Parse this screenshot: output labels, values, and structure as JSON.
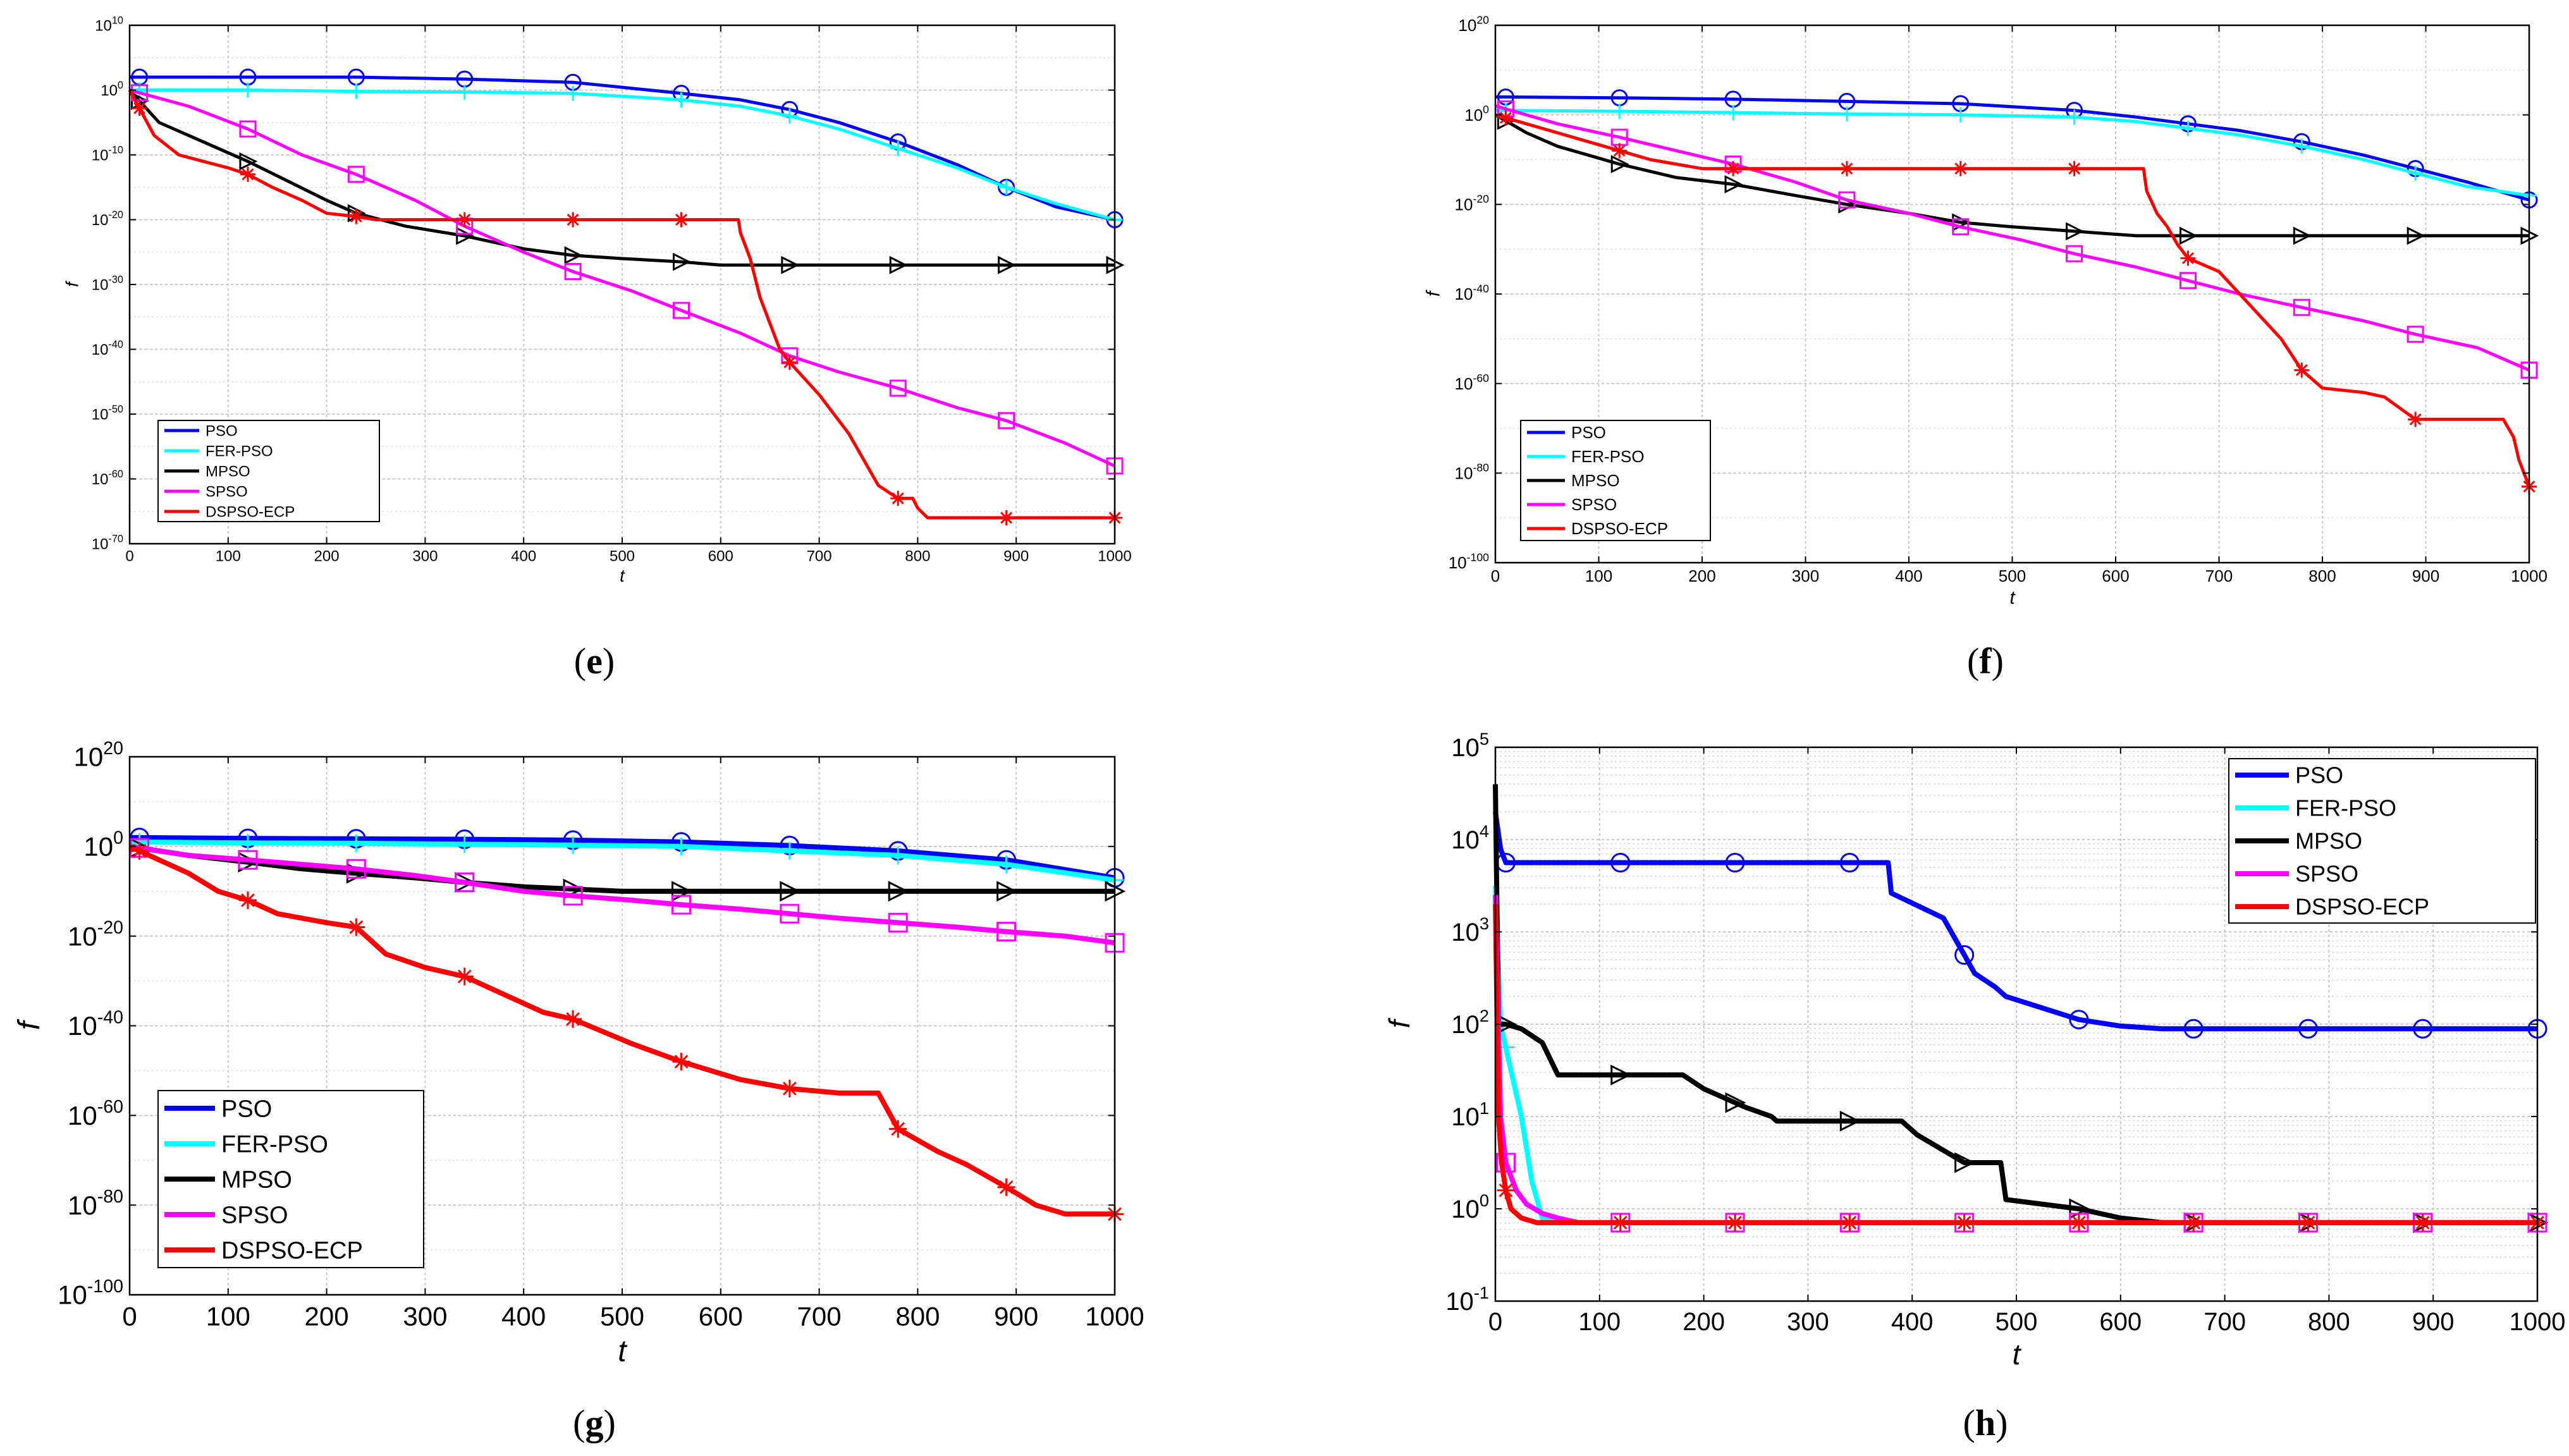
{
  "chart_data": [
    {
      "panel": "(e)",
      "type": "line",
      "scale_y": "log",
      "xlabel": "t",
      "ylabel": "f",
      "xlim": [
        0,
        1000
      ],
      "xticks": [
        "0",
        "100",
        "200",
        "300",
        "400",
        "500",
        "600",
        "700",
        "800",
        "900",
        "1000"
      ],
      "ylim_exp": [
        -70,
        10
      ],
      "ytick_exps": [
        -70,
        -60,
        -50,
        -40,
        -30,
        -20,
        -10,
        0,
        10
      ],
      "grid": true,
      "legend_placement": "bottom-left",
      "series": [
        {
          "name": "PSO",
          "color": "#0000ff",
          "marker": "circle",
          "x": [
            0,
            120,
            230,
            340,
            450,
            560,
            620,
            670,
            720,
            780,
            840,
            890,
            940,
            1000
          ],
          "y_exp": [
            2,
            2,
            2,
            1.7,
            1.2,
            -0.5,
            -1.5,
            -3,
            -5,
            -8,
            -11.5,
            -15,
            -18,
            -20
          ]
        },
        {
          "name": "FER-PSO",
          "color": "#00ffff",
          "marker": "plus",
          "x": [
            0,
            120,
            230,
            340,
            450,
            560,
            620,
            670,
            720,
            780,
            840,
            890,
            940,
            1000
          ],
          "y_exp": [
            0,
            0,
            -0.2,
            -0.3,
            -0.5,
            -1.5,
            -2.5,
            -4,
            -6,
            -9,
            -12,
            -15,
            -17.5,
            -20
          ]
        },
        {
          "name": "MPSO",
          "color": "#000000",
          "marker": "triangle-right",
          "x": [
            0,
            30,
            60,
            90,
            120,
            160,
            200,
            230,
            280,
            340,
            400,
            450,
            500,
            560,
            600,
            640,
            670,
            780,
            890,
            1000
          ],
          "y_exp": [
            0,
            -5,
            -7,
            -9,
            -11,
            -14,
            -17,
            -19,
            -21,
            -22.5,
            -24.5,
            -25.5,
            -26,
            -26.5,
            -27,
            -27,
            -27,
            -27,
            -27,
            -27
          ]
        },
        {
          "name": "SPSO",
          "color": "#ff00ff",
          "marker": "square",
          "x": [
            0,
            60,
            120,
            175,
            230,
            290,
            340,
            400,
            450,
            510,
            560,
            620,
            670,
            720,
            780,
            840,
            890,
            950,
            1000
          ],
          "y_exp": [
            0,
            -2.5,
            -6,
            -10,
            -13,
            -17,
            -21,
            -25,
            -28,
            -31,
            -34,
            -37.5,
            -41,
            -43.5,
            -46,
            -49,
            -51,
            -54.5,
            -58
          ]
        },
        {
          "name": "DSPSO-ECP",
          "color": "#ff0000",
          "marker": "asterisk",
          "x": [
            0,
            25,
            50,
            75,
            100,
            120,
            145,
            175,
            200,
            230,
            250,
            340,
            450,
            560,
            618,
            620,
            630,
            640,
            650,
            660,
            670,
            700,
            730,
            760,
            780,
            795,
            800,
            810,
            890,
            1000
          ],
          "y_exp": [
            0,
            -7,
            -10,
            -11,
            -12,
            -13,
            -15,
            -17,
            -19,
            -19.5,
            -20,
            -20,
            -20,
            -20,
            -20,
            -22,
            -26,
            -32,
            -36,
            -40,
            -42,
            -47,
            -53,
            -61,
            -63,
            -63,
            -64.5,
            -66,
            -66,
            -66
          ]
        }
      ]
    },
    {
      "panel": "(f)",
      "type": "line",
      "scale_y": "log",
      "xlabel": "t",
      "ylabel": "f",
      "xlim": [
        0,
        1000
      ],
      "xticks": [
        "0",
        "100",
        "200",
        "300",
        "400",
        "500",
        "600",
        "700",
        "800",
        "900",
        "1000"
      ],
      "ylim_exp": [
        -100,
        20
      ],
      "ytick_exps": [
        -100,
        -80,
        -60,
        -40,
        -20,
        0,
        20
      ],
      "grid": true,
      "legend_placement": "bottom-left",
      "series": [
        {
          "name": "PSO",
          "color": "#0000ff",
          "marker": "circle",
          "x": [
            0,
            120,
            230,
            340,
            450,
            560,
            620,
            670,
            720,
            780,
            840,
            890,
            940,
            1000
          ],
          "y_exp": [
            4,
            3.8,
            3.5,
            3,
            2.5,
            1,
            -0.5,
            -2,
            -3.5,
            -6,
            -9,
            -12,
            -15,
            -19
          ]
        },
        {
          "name": "FER-PSO",
          "color": "#00ffff",
          "marker": "plus",
          "x": [
            0,
            120,
            230,
            340,
            450,
            560,
            620,
            670,
            720,
            780,
            840,
            890,
            940,
            1000
          ],
          "y_exp": [
            1,
            0.8,
            0.5,
            0.2,
            0,
            -0.5,
            -1.5,
            -3,
            -4.5,
            -7,
            -10,
            -13,
            -16,
            -18
          ]
        },
        {
          "name": "MPSO",
          "color": "#000000",
          "marker": "triangle-right",
          "x": [
            0,
            30,
            60,
            120,
            175,
            230,
            290,
            340,
            400,
            450,
            500,
            560,
            620,
            670,
            780,
            890,
            1000
          ],
          "y_exp": [
            0,
            -4,
            -7,
            -11,
            -14,
            -15.5,
            -18,
            -20,
            -22,
            -24,
            -25,
            -26,
            -27,
            -27,
            -27,
            -27,
            -27
          ]
        },
        {
          "name": "SPSO",
          "color": "#ff00ff",
          "marker": "square",
          "x": [
            0,
            60,
            120,
            175,
            230,
            290,
            340,
            400,
            450,
            510,
            560,
            620,
            670,
            720,
            780,
            840,
            890,
            950,
            1000
          ],
          "y_exp": [
            2,
            -2,
            -5,
            -8,
            -11,
            -15,
            -19,
            -22,
            -25,
            -28,
            -31,
            -34,
            -37,
            -40,
            -43,
            -46,
            -49,
            -52,
            -57
          ]
        },
        {
          "name": "DSPSO-ECP",
          "color": "#ff0000",
          "marker": "asterisk",
          "x": [
            0,
            30,
            60,
            90,
            120,
            150,
            200,
            230,
            340,
            450,
            560,
            627,
            630,
            640,
            650,
            660,
            670,
            700,
            720,
            760,
            780,
            800,
            840,
            860,
            890,
            950,
            975,
            985,
            990,
            1000
          ],
          "y_exp": [
            0,
            -2,
            -4,
            -6,
            -8,
            -10,
            -12,
            -12,
            -12,
            -12,
            -12,
            -12,
            -17,
            -22,
            -25,
            -29,
            -32,
            -35,
            -40,
            -50,
            -57,
            -61,
            -62,
            -63,
            -68,
            -68,
            -68,
            -72,
            -77,
            -83
          ]
        }
      ]
    },
    {
      "panel": "(g)",
      "type": "line",
      "scale_y": "log",
      "xlabel": "t",
      "ylabel": "f",
      "xlim": [
        0,
        1000
      ],
      "xticks": [
        "0",
        "100",
        "200",
        "300",
        "400",
        "500",
        "600",
        "700",
        "800",
        "900",
        "1000"
      ],
      "ylim_exp": [
        -100,
        20
      ],
      "ytick_exps": [
        -100,
        -80,
        -60,
        -40,
        -20,
        0,
        20
      ],
      "grid": true,
      "legend_placement": "bottom-left",
      "series": [
        {
          "name": "PSO",
          "color": "#0000ff",
          "marker": "circle",
          "x": [
            0,
            120,
            230,
            340,
            450,
            560,
            670,
            780,
            890,
            1000
          ],
          "y_exp": [
            2,
            1.8,
            1.7,
            1.6,
            1.4,
            1,
            0.2,
            -1,
            -3,
            -7
          ]
        },
        {
          "name": "FER-PSO",
          "color": "#00ffff",
          "marker": "plus",
          "x": [
            0,
            120,
            230,
            340,
            450,
            560,
            670,
            780,
            890,
            1000
          ],
          "y_exp": [
            1,
            0.8,
            0.7,
            0.5,
            0.3,
            0,
            -1,
            -2,
            -4,
            -7.5
          ]
        },
        {
          "name": "MPSO",
          "color": "#000000",
          "marker": "triangle-right",
          "x": [
            0,
            60,
            120,
            175,
            230,
            290,
            340,
            400,
            450,
            500,
            560,
            620,
            670,
            780,
            890,
            1000
          ],
          "y_exp": [
            0,
            -2,
            -3.5,
            -5,
            -6,
            -7,
            -8,
            -9,
            -9.5,
            -10,
            -10,
            -10,
            -10,
            -10,
            -10,
            -10
          ]
        },
        {
          "name": "SPSO",
          "color": "#ff00ff",
          "marker": "square",
          "x": [
            0,
            60,
            120,
            175,
            230,
            290,
            340,
            400,
            450,
            510,
            560,
            620,
            670,
            720,
            780,
            840,
            890,
            950,
            1000
          ],
          "y_exp": [
            0,
            -2,
            -3,
            -4,
            -5,
            -6.5,
            -8,
            -10,
            -11,
            -12,
            -13,
            -14,
            -15,
            -16,
            -17,
            -18,
            -19,
            -20,
            -21.5
          ]
        },
        {
          "name": "DSPSO-ECP",
          "color": "#ff0000",
          "marker": "asterisk",
          "x": [
            0,
            30,
            60,
            90,
            120,
            150,
            175,
            200,
            230,
            260,
            300,
            340,
            380,
            420,
            450,
            510,
            560,
            620,
            670,
            720,
            760,
            780,
            820,
            850,
            890,
            920,
            950,
            1000
          ],
          "y_exp": [
            0,
            -3,
            -6,
            -10,
            -12,
            -15,
            -16,
            -17,
            -18,
            -24,
            -27,
            -29,
            -33,
            -37,
            -38.5,
            -44,
            -48,
            -52,
            -54,
            -55,
            -55,
            -63,
            -68,
            -71,
            -76,
            -80,
            -82,
            -82
          ]
        }
      ]
    },
    {
      "panel": "(h)",
      "type": "line",
      "scale_y": "log",
      "xlabel": "t",
      "ylabel": "f",
      "xlim": [
        0,
        1000
      ],
      "xticks": [
        "0",
        "100",
        "200",
        "300",
        "400",
        "500",
        "600",
        "700",
        "800",
        "900",
        "1000"
      ],
      "ylim_exp": [
        -1,
        5
      ],
      "ytick_exps": [
        -1,
        0,
        1,
        2,
        3,
        4,
        5
      ],
      "grid": true,
      "grid_minor": true,
      "legend_placement": "top-right",
      "series": [
        {
          "name": "PSO",
          "color": "#0000ff",
          "marker": "circle",
          "x": [
            0,
            5,
            10,
            120,
            230,
            340,
            377,
            380,
            430,
            445,
            460,
            480,
            490,
            560,
            600,
            640,
            670,
            780,
            890,
            1000
          ],
          "y_exp": [
            4.3,
            3.9,
            3.75,
            3.75,
            3.75,
            3.75,
            3.75,
            3.42,
            3.15,
            2.85,
            2.55,
            2.4,
            2.3,
            2.05,
            1.98,
            1.95,
            1.95,
            1.95,
            1.95,
            1.95
          ]
        },
        {
          "name": "FER-PSO",
          "color": "#00ffff",
          "marker": "plus",
          "x": [
            0,
            5,
            15,
            25,
            35,
            45,
            60,
            80,
            120,
            230,
            340,
            450,
            560,
            670,
            780,
            890,
            1000
          ],
          "y_exp": [
            3.5,
            2,
            1.5,
            1,
            0.3,
            -0.1,
            -0.15,
            -0.15,
            -0.15,
            -0.15,
            -0.15,
            -0.15,
            -0.15,
            -0.15,
            -0.15,
            -0.15,
            -0.15
          ]
        },
        {
          "name": "MPSO",
          "color": "#000000",
          "marker": "triangle-right",
          "x": [
            0,
            3,
            10,
            25,
            45,
            60,
            120,
            180,
            200,
            240,
            265,
            270,
            300,
            340,
            390,
            405,
            450,
            485,
            490,
            560,
            600,
            640,
            670,
            780,
            890,
            1000
          ],
          "y_exp": [
            4.6,
            2,
            2,
            1.95,
            1.8,
            1.45,
            1.45,
            1.45,
            1.3,
            1.1,
            1,
            0.95,
            0.95,
            0.95,
            0.95,
            0.8,
            0.5,
            0.5,
            0.1,
            0,
            -0.1,
            -0.15,
            -0.15,
            -0.15,
            -0.15,
            -0.15
          ]
        },
        {
          "name": "SPSO",
          "color": "#ff00ff",
          "marker": "square",
          "x": [
            0,
            5,
            10,
            20,
            30,
            45,
            60,
            80,
            120,
            230,
            340,
            450,
            560,
            670,
            780,
            890,
            1000
          ],
          "y_exp": [
            3.4,
            1,
            0.5,
            0.2,
            0.05,
            -0.05,
            -0.1,
            -0.15,
            -0.15,
            -0.15,
            -0.15,
            -0.15,
            -0.15,
            -0.15,
            -0.15,
            -0.15,
            -0.15
          ]
        },
        {
          "name": "DSPSO-ECP",
          "color": "#ff0000",
          "marker": "asterisk",
          "x": [
            0,
            3,
            6,
            10,
            15,
            25,
            40,
            120,
            230,
            340,
            450,
            560,
            670,
            780,
            890,
            1000
          ],
          "y_exp": [
            3.3,
            1,
            0.5,
            0.2,
            0,
            -0.1,
            -0.15,
            -0.15,
            -0.15,
            -0.15,
            -0.15,
            -0.15,
            -0.15,
            -0.15,
            -0.15,
            -0.15
          ]
        }
      ]
    }
  ]
}
